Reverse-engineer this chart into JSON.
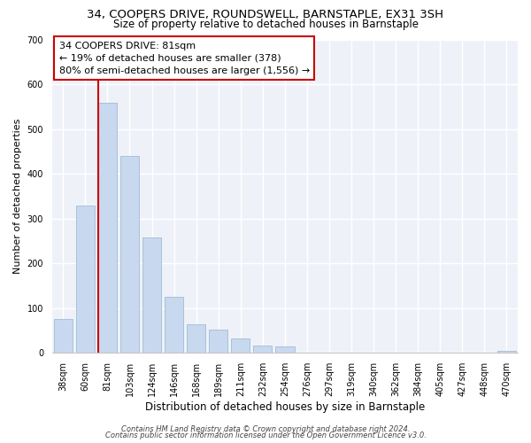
{
  "title": "34, COOPERS DRIVE, ROUNDSWELL, BARNSTAPLE, EX31 3SH",
  "subtitle": "Size of property relative to detached houses in Barnstaple",
  "xlabel": "Distribution of detached houses by size in Barnstaple",
  "ylabel": "Number of detached properties",
  "bar_labels": [
    "38sqm",
    "60sqm",
    "81sqm",
    "103sqm",
    "124sqm",
    "146sqm",
    "168sqm",
    "189sqm",
    "211sqm",
    "232sqm",
    "254sqm",
    "276sqm",
    "297sqm",
    "319sqm",
    "340sqm",
    "362sqm",
    "384sqm",
    "405sqm",
    "427sqm",
    "448sqm",
    "470sqm"
  ],
  "bar_values": [
    75,
    330,
    560,
    440,
    258,
    125,
    65,
    52,
    32,
    17,
    14,
    0,
    0,
    0,
    0,
    0,
    0,
    0,
    0,
    0,
    5
  ],
  "bar_color": "#c8d8ee",
  "bar_edge_color": "#a0bcd8",
  "property_line_x": 2,
  "property_line_color": "#cc0000",
  "ylim": [
    0,
    700
  ],
  "yticks": [
    0,
    100,
    200,
    300,
    400,
    500,
    600,
    700
  ],
  "annotation_title": "34 COOPERS DRIVE: 81sqm",
  "annotation_line1": "← 19% of detached houses are smaller (378)",
  "annotation_line2": "80% of semi-detached houses are larger (1,556) →",
  "footer1": "Contains HM Land Registry data © Crown copyright and database right 2024.",
  "footer2": "Contains public sector information licensed under the Open Government Licence v3.0.",
  "background_color": "#ffffff",
  "plot_bg_color": "#eef2f8",
  "grid_color": "#ffffff",
  "title_fontsize": 9.5,
  "subtitle_fontsize": 8.5,
  "xlabel_fontsize": 8.5,
  "ylabel_fontsize": 8,
  "tick_fontsize": 7,
  "annot_fontsize": 8,
  "footer_fontsize": 6
}
